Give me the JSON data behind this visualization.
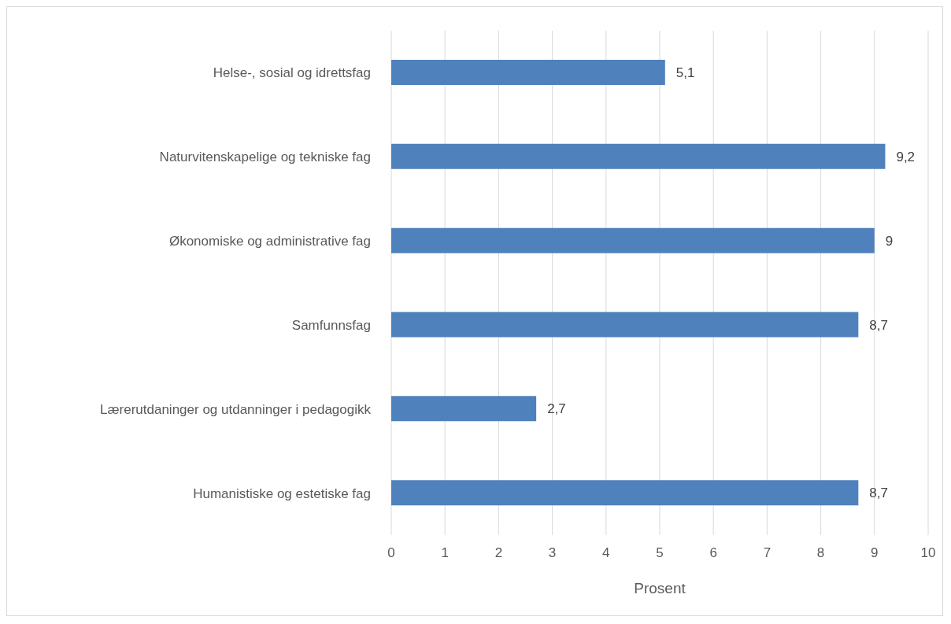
{
  "chart_data": {
    "type": "bar",
    "orientation": "horizontal",
    "xlabel": "Prosent",
    "categories": [
      "Helse-, sosial og idrettsfag",
      "Naturvitenskapelige og tekniske fag",
      "Økonomiske og administrative fag",
      "Samfunnsfag",
      "Lærerutdaninger og utdanninger i pedagogikk",
      "Humanistiske og estetiske fag"
    ],
    "values": [
      5.1,
      9.2,
      9,
      8.7,
      2.7,
      8.7
    ],
    "value_labels": [
      "5,1",
      "9,2",
      "9",
      "8,7",
      "2,7",
      "8,7"
    ],
    "color": "#4f81bd",
    "xlim": [
      0,
      10
    ],
    "xticks": [
      0,
      1,
      2,
      3,
      4,
      5,
      6,
      7,
      8,
      9,
      10
    ],
    "grid": "x"
  }
}
